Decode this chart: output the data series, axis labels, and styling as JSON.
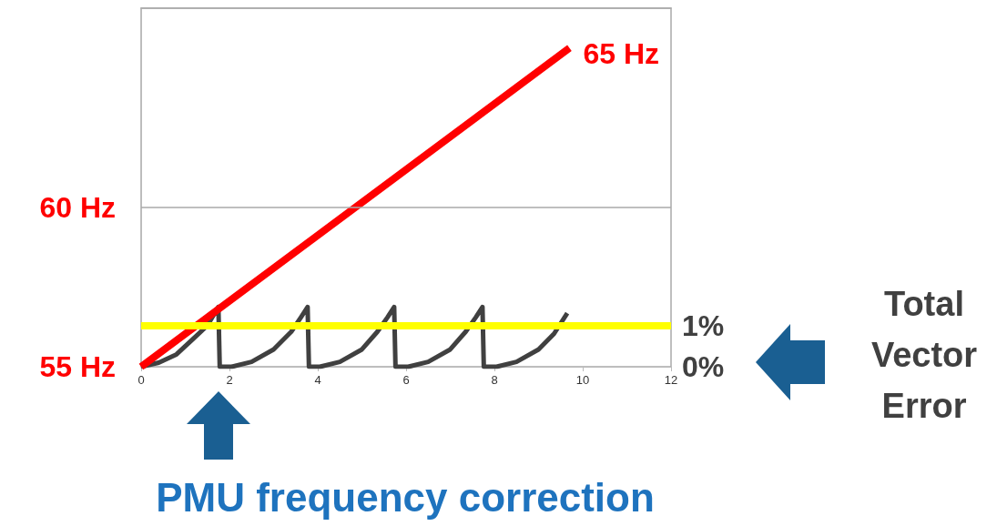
{
  "chart_data": {
    "type": "line",
    "series": [
      {
        "color": "#ff0000",
        "x": [
          0,
          9.7
        ],
        "values": [
          55,
          65
        ]
      },
      {
        "axis": "y2",
        "color": "#404040",
        "x": [
          0,
          0.4,
          0.8,
          1.2,
          1.5,
          1.75,
          1.78,
          2.05,
          2.5,
          3.0,
          3.4,
          3.62,
          3.77,
          3.8,
          4.05,
          4.5,
          5.0,
          5.35,
          5.58,
          5.73,
          5.76,
          6.05,
          6.5,
          7.0,
          7.35,
          7.58,
          7.73,
          7.76,
          8.05,
          8.5,
          9.0,
          9.35,
          9.65
        ],
        "values": [
          0,
          0.1,
          0.3,
          0.7,
          1.0,
          1.45,
          0,
          0,
          0.12,
          0.42,
          0.85,
          1.2,
          1.45,
          0,
          0,
          0.12,
          0.42,
          0.85,
          1.2,
          1.45,
          0,
          0,
          0.12,
          0.42,
          0.85,
          1.2,
          1.45,
          0,
          0,
          0.12,
          0.42,
          0.8,
          1.3
        ]
      }
    ],
    "xlim": [
      0,
      12
    ],
    "xticks": [
      0,
      2,
      4,
      6,
      8,
      10,
      12
    ],
    "ylim": [
      55,
      66.25
    ],
    "yticks": [
      {
        "value": 55,
        "label": "55 Hz"
      },
      {
        "value": 60,
        "label": "60 Hz"
      }
    ],
    "y2lim": [
      0,
      8.7
    ],
    "y2ticks": [
      {
        "value": 0,
        "label": "0%"
      },
      {
        "value": 1,
        "label": "1%"
      }
    ],
    "marker": "none",
    "line_style": "solid",
    "ref_lines": [
      {
        "axis": "y2",
        "value": 1,
        "color": "#ffff00"
      },
      {
        "axis": "y",
        "value": 60,
        "color": "#aaaaaa"
      }
    ],
    "annotations": [
      {
        "text": "65 Hz",
        "x": 9.7,
        "y": 65
      },
      "Total Vector Error",
      "PMU frequency correction"
    ]
  }
}
